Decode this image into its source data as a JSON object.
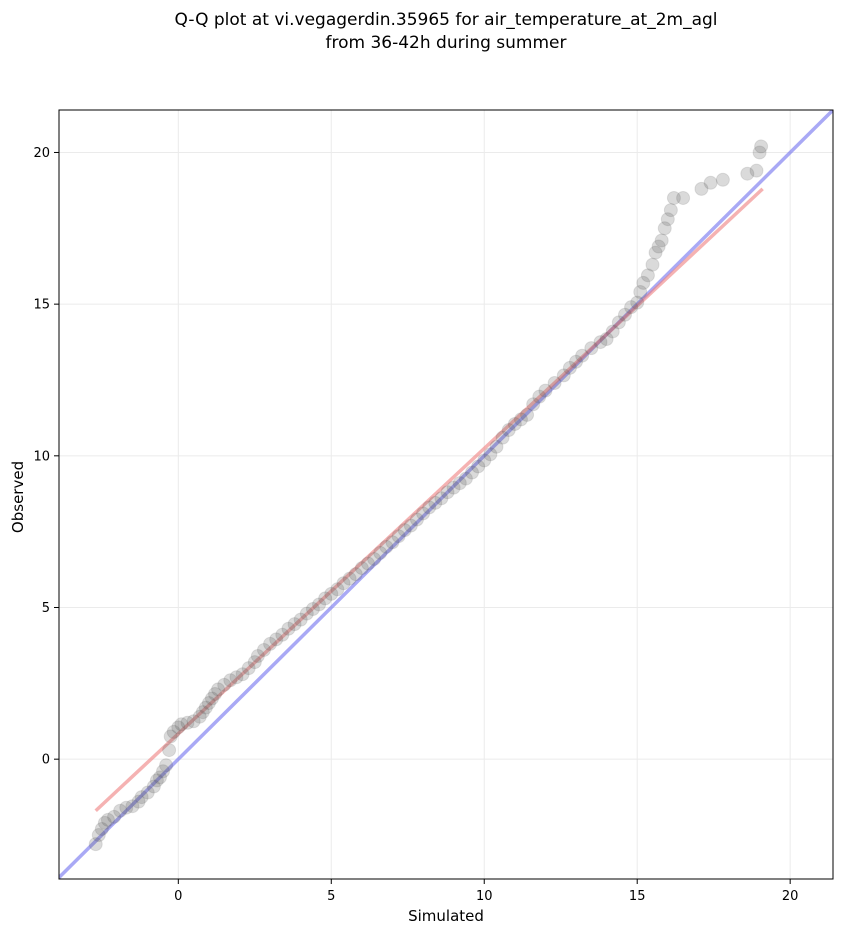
{
  "chart_data": {
    "type": "scatter",
    "title_lines": [
      "Q-Q plot at vi.vegagerdin.35965 for air_temperature_at_2m_agl",
      "from 36-42h during summer"
    ],
    "xlabel": "Simulated",
    "ylabel": "Observed",
    "xlim": [
      -3.9,
      21.4
    ],
    "ylim": [
      -3.95,
      21.4
    ],
    "xticks": [
      0,
      5,
      10,
      15,
      20
    ],
    "yticks": [
      0,
      5,
      10,
      15,
      20
    ],
    "xtick_labels": [
      "0",
      "5",
      "10",
      "15",
      "20"
    ],
    "ytick_labels": [
      "0",
      "5",
      "10",
      "15",
      "20"
    ],
    "grid": true,
    "identity_line": {
      "color": "#6f6fee",
      "from": [
        -3.9,
        -3.9
      ],
      "to": [
        21.4,
        21.4
      ]
    },
    "fit_line": {
      "color": "#ef7f7f",
      "from": [
        -2.7,
        -1.7
      ],
      "to": [
        19.1,
        18.8
      ]
    },
    "point_color": "#555555",
    "quantiles": [
      [
        -2.7,
        -2.8
      ],
      [
        -2.6,
        -2.5
      ],
      [
        -2.5,
        -2.3
      ],
      [
        -2.4,
        -2.1
      ],
      [
        -2.3,
        -2.0
      ],
      [
        -2.1,
        -1.9
      ],
      [
        -1.9,
        -1.7
      ],
      [
        -1.7,
        -1.6
      ],
      [
        -1.5,
        -1.55
      ],
      [
        -1.3,
        -1.4
      ],
      [
        -1.2,
        -1.25
      ],
      [
        -1.0,
        -1.1
      ],
      [
        -0.8,
        -0.9
      ],
      [
        -0.7,
        -0.7
      ],
      [
        -0.6,
        -0.6
      ],
      [
        -0.5,
        -0.4
      ],
      [
        -0.4,
        -0.2
      ],
      [
        -0.3,
        0.3
      ],
      [
        -0.25,
        0.75
      ],
      [
        -0.15,
        0.9
      ],
      [
        0.0,
        1.05
      ],
      [
        0.1,
        1.15
      ],
      [
        0.3,
        1.2
      ],
      [
        0.5,
        1.25
      ],
      [
        0.7,
        1.4
      ],
      [
        0.8,
        1.55
      ],
      [
        0.9,
        1.7
      ],
      [
        1.0,
        1.85
      ],
      [
        1.1,
        2.0
      ],
      [
        1.2,
        2.15
      ],
      [
        1.3,
        2.3
      ],
      [
        1.5,
        2.45
      ],
      [
        1.7,
        2.6
      ],
      [
        1.9,
        2.7
      ],
      [
        2.1,
        2.8
      ],
      [
        2.3,
        3.0
      ],
      [
        2.5,
        3.2
      ],
      [
        2.6,
        3.4
      ],
      [
        2.8,
        3.6
      ],
      [
        3.0,
        3.8
      ],
      [
        3.2,
        3.95
      ],
      [
        3.4,
        4.1
      ],
      [
        3.6,
        4.3
      ],
      [
        3.8,
        4.45
      ],
      [
        4.0,
        4.6
      ],
      [
        4.2,
        4.8
      ],
      [
        4.4,
        4.95
      ],
      [
        4.6,
        5.1
      ],
      [
        4.8,
        5.3
      ],
      [
        5.0,
        5.45
      ],
      [
        5.2,
        5.6
      ],
      [
        5.4,
        5.8
      ],
      [
        5.6,
        5.95
      ],
      [
        5.8,
        6.1
      ],
      [
        6.0,
        6.3
      ],
      [
        6.2,
        6.45
      ],
      [
        6.4,
        6.6
      ],
      [
        6.6,
        6.8
      ],
      [
        6.8,
        7.0
      ],
      [
        7.0,
        7.15
      ],
      [
        7.2,
        7.35
      ],
      [
        7.4,
        7.55
      ],
      [
        7.6,
        7.7
      ],
      [
        7.8,
        7.9
      ],
      [
        8.0,
        8.1
      ],
      [
        8.2,
        8.3
      ],
      [
        8.4,
        8.45
      ],
      [
        8.6,
        8.6
      ],
      [
        8.8,
        8.8
      ],
      [
        9.0,
        8.95
      ],
      [
        9.2,
        9.1
      ],
      [
        9.4,
        9.25
      ],
      [
        9.6,
        9.45
      ],
      [
        9.8,
        9.65
      ],
      [
        10.0,
        9.85
      ],
      [
        10.2,
        10.05
      ],
      [
        10.4,
        10.3
      ],
      [
        10.6,
        10.6
      ],
      [
        10.8,
        10.85
      ],
      [
        11.0,
        11.05
      ],
      [
        11.2,
        11.2
      ],
      [
        11.4,
        11.35
      ],
      [
        11.6,
        11.7
      ],
      [
        11.8,
        11.95
      ],
      [
        12.0,
        12.15
      ],
      [
        12.3,
        12.4
      ],
      [
        12.6,
        12.65
      ],
      [
        12.8,
        12.9
      ],
      [
        13.0,
        13.1
      ],
      [
        13.2,
        13.3
      ],
      [
        13.5,
        13.55
      ],
      [
        13.8,
        13.75
      ],
      [
        14.0,
        13.85
      ],
      [
        14.2,
        14.1
      ],
      [
        14.4,
        14.4
      ],
      [
        14.6,
        14.65
      ],
      [
        14.8,
        14.9
      ],
      [
        15.0,
        15.05
      ],
      [
        15.1,
        15.4
      ],
      [
        15.2,
        15.7
      ],
      [
        15.35,
        15.95
      ],
      [
        15.5,
        16.3
      ],
      [
        15.6,
        16.7
      ],
      [
        15.7,
        16.9
      ],
      [
        15.8,
        17.1
      ],
      [
        15.9,
        17.5
      ],
      [
        16.0,
        17.8
      ],
      [
        16.1,
        18.1
      ],
      [
        16.2,
        18.5
      ],
      [
        16.5,
        18.5
      ],
      [
        17.1,
        18.8
      ],
      [
        17.4,
        19.0
      ],
      [
        17.8,
        19.1
      ],
      [
        18.6,
        19.3
      ],
      [
        18.9,
        19.4
      ],
      [
        19.0,
        20.0
      ],
      [
        19.05,
        20.2
      ]
    ]
  }
}
